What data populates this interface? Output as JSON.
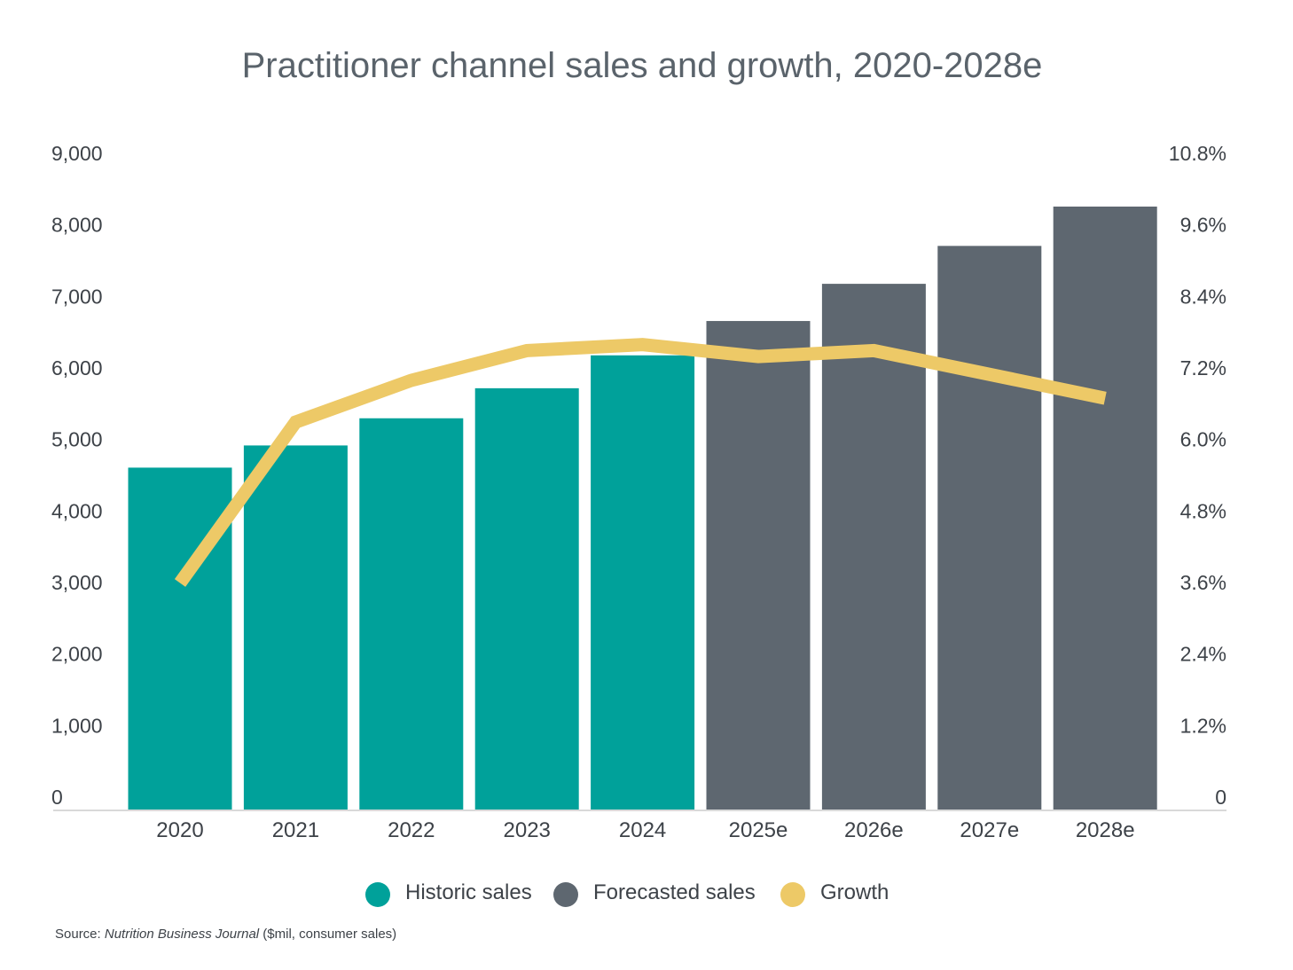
{
  "chart_data": {
    "type": "bar+line",
    "title": "Practitioner channel sales and growth, 2020-2028e",
    "categories": [
      "2020",
      "2021",
      "2022",
      "2023",
      "2024",
      "2025e",
      "2026e",
      "2027e",
      "2028e"
    ],
    "series": [
      {
        "name": "Historic sales",
        "type": "bar",
        "axis": "left",
        "color": "#00a19a",
        "values": [
          4780,
          5090,
          5470,
          5890,
          6350,
          null,
          null,
          null,
          null
        ]
      },
      {
        "name": "Forecasted sales",
        "type": "bar",
        "axis": "left",
        "color": "#5e6770",
        "values": [
          null,
          null,
          null,
          null,
          null,
          6830,
          7350,
          7880,
          8430
        ]
      },
      {
        "name": "Growth",
        "type": "line",
        "axis": "right",
        "color": "#edc967",
        "unit": "%",
        "values": [
          3.8,
          6.5,
          7.2,
          7.7,
          7.8,
          7.6,
          7.7,
          7.3,
          6.9
        ]
      }
    ],
    "left_axis": {
      "ylim": [
        0,
        9000
      ],
      "ticks": [
        "0",
        "1,000",
        "2,000",
        "3,000",
        "4,000",
        "5,000",
        "6,000",
        "7,000",
        "8,000",
        "9,000"
      ]
    },
    "right_axis": {
      "ylim": [
        0,
        10.8
      ],
      "ticks": [
        "0",
        "1.2%",
        "2.4%",
        "3.6%",
        "4.8%",
        "6.0%",
        "7.2%",
        "8.4%",
        "9.6%",
        "10.8%"
      ]
    },
    "grid": false,
    "legend_position": "bottom"
  },
  "source": {
    "prefix": "Source: ",
    "publication": "Nutrition Business Journal",
    "suffix": " ($mil, consumer sales)"
  }
}
